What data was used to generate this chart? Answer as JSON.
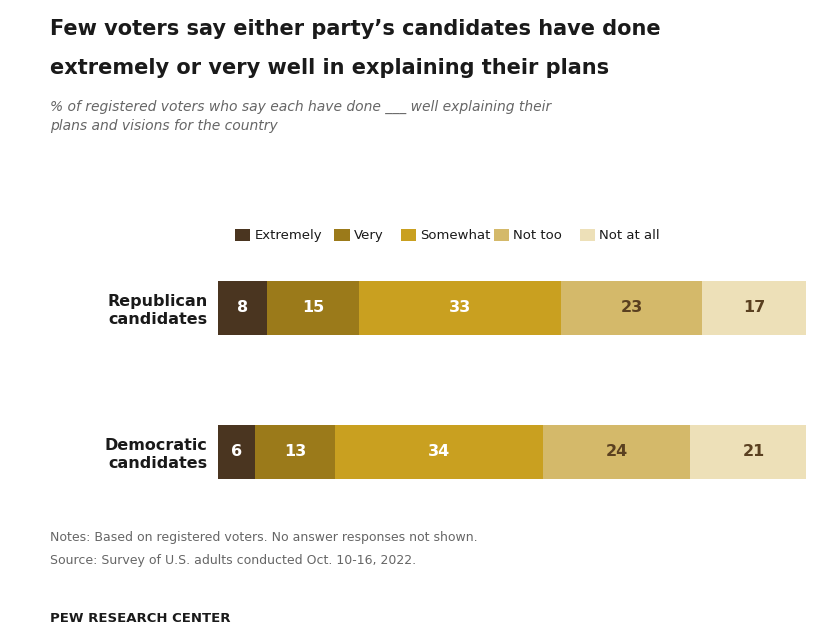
{
  "title_line1": "Few voters say either party’s candidates have done",
  "title_line2": "extremely or very well in explaining their plans",
  "subtitle": "% of registered voters who say each have done ___ well explaining their\nplans and visions for the country",
  "categories": [
    "Republican\ncandidates",
    "Democratic\ncandidates"
  ],
  "segments": [
    "Extremely",
    "Very",
    "Somewhat",
    "Not too",
    "Not at all"
  ],
  "values": [
    [
      8,
      15,
      33,
      23,
      17
    ],
    [
      6,
      13,
      34,
      24,
      21
    ]
  ],
  "colors": [
    "#4a3520",
    "#9b7a1a",
    "#c9a020",
    "#d4b96a",
    "#ede0b8"
  ],
  "white_text_segments": [
    "Extremely",
    "Very",
    "Somewhat"
  ],
  "dark_text_segments": [
    "Not too",
    "Not at all"
  ],
  "notes_line1": "Notes: Based on registered voters. No answer responses not shown.",
  "notes_line2": "Source: Survey of U.S. adults conducted Oct. 10-16, 2022.",
  "footer": "PEW RESEARCH CENTER",
  "background_color": "#ffffff"
}
